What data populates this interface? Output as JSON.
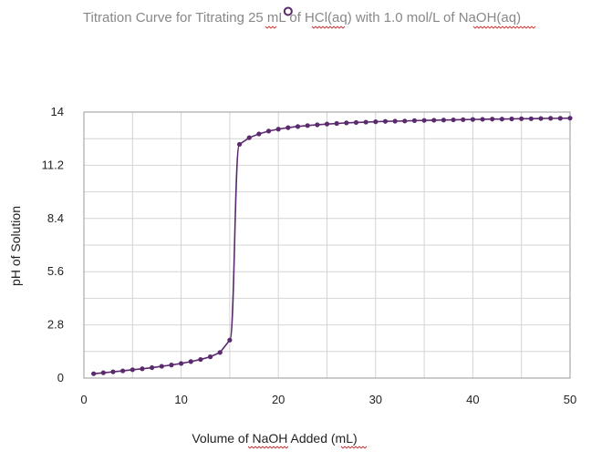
{
  "chart_data": {
    "type": "line",
    "title": "Titration Curve for Titrating 25 mL of HCl(aq) with 1.0 mol/L of NaOH(aq)",
    "xlabel": "Volume of NaOH Added (mL)",
    "ylabel": "pH of Solution",
    "xlim": [
      0,
      50
    ],
    "ylim": [
      0,
      14
    ],
    "x_ticks": [
      "0",
      "10",
      "20",
      "30",
      "40",
      "50"
    ],
    "y_ticks": [
      "0",
      "2.8",
      "5.6",
      "8.4",
      "11.2",
      "14"
    ],
    "grid": true,
    "legend": "none",
    "series": [
      {
        "color": "#5b2a6e",
        "marker": "circle",
        "x": [
          1,
          2,
          3,
          4,
          5,
          6,
          7,
          8,
          9,
          10,
          11,
          12,
          13,
          14,
          15,
          16,
          17,
          18,
          19,
          20,
          21,
          22,
          23,
          24,
          25,
          26,
          27,
          28,
          29,
          30,
          31,
          32,
          33,
          34,
          35,
          36,
          37,
          38,
          39,
          40,
          41,
          42,
          43,
          44,
          45,
          46,
          47,
          48,
          49,
          50
        ],
        "y": [
          0.23,
          0.28,
          0.33,
          0.38,
          0.44,
          0.49,
          0.55,
          0.62,
          0.69,
          0.77,
          0.87,
          0.98,
          1.12,
          1.35,
          2.0,
          12.3,
          12.65,
          12.85,
          13.0,
          13.1,
          13.18,
          13.24,
          13.29,
          13.33,
          13.37,
          13.4,
          13.43,
          13.45,
          13.47,
          13.49,
          13.51,
          13.52,
          13.53,
          13.55,
          13.56,
          13.57,
          13.58,
          13.59,
          13.6,
          13.61,
          13.62,
          13.63,
          13.63,
          13.64,
          13.65,
          13.65,
          13.66,
          13.67,
          13.67,
          13.68
        ]
      }
    ],
    "annotation_marker": {
      "x": 21,
      "y": 19.3,
      "shape": "hollow-circle",
      "color": "#5b2a6e"
    }
  }
}
